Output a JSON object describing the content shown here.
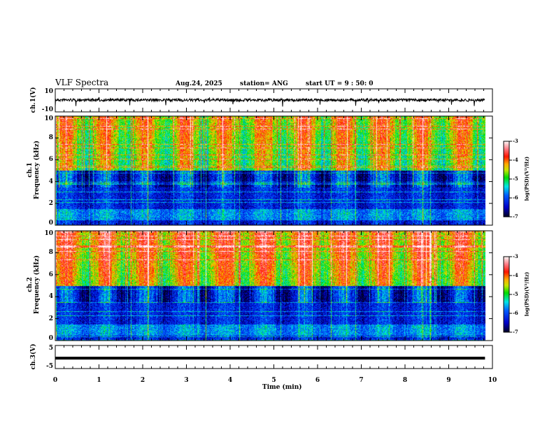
{
  "header": {
    "title": "VLF Spectra",
    "date": "Aug.24, 2025",
    "station": "station= ANG",
    "start": "start  UT =   9 : 50: 0"
  },
  "chart_data": [
    {
      "type": "line",
      "name": "ch1-waveform",
      "ylabel": "ch.1(V)",
      "ylim": [
        -10,
        10
      ],
      "ytick_labels": [
        "10",
        "-10"
      ],
      "baseline": 0,
      "x_end": 9.83
    },
    {
      "type": "heatmap",
      "name": "ch1-spectrogram",
      "ylabel": "ch.1\nFrequency (kHz)",
      "ylabel_top": "ch.1",
      "ylabel_bottom": "Frequency  (kHz)",
      "ylim": [
        0,
        10
      ],
      "ytick_labels": [
        "0",
        "2",
        "4",
        "6",
        "8",
        "10"
      ],
      "intensity": "lower",
      "colorbar": {
        "label": "log(PSD)(V²/Hz)",
        "range": [
          -7,
          -3
        ],
        "tick_labels": [
          "-3",
          "-4",
          "-5",
          "-6",
          "-7"
        ]
      }
    },
    {
      "type": "heatmap",
      "name": "ch2-spectrogram",
      "ylabel_top": "ch.2",
      "ylabel_bottom": "Frequency  (kHz)",
      "ylim": [
        0,
        10
      ],
      "ytick_labels": [
        "0",
        "2",
        "4",
        "6",
        "8",
        "10"
      ],
      "intensity": "higher",
      "colorbar": {
        "label": "log(PSD)(V²/Hz)",
        "range": [
          -7,
          -3
        ],
        "tick_labels": [
          "-3",
          "-4",
          "-5",
          "-6",
          "-7"
        ]
      }
    },
    {
      "type": "line",
      "name": "ch3-waveform",
      "ylabel": "ch.3(V)",
      "ylim": [
        -5,
        5
      ],
      "ytick_labels": [
        "5",
        "-5"
      ],
      "values_constant": -0.5,
      "x_end": 9.83
    }
  ],
  "xaxis": {
    "label": "Time  (min)",
    "range": [
      0,
      10
    ],
    "tick_labels": [
      "0",
      "1",
      "2",
      "3",
      "4",
      "5",
      "6",
      "7",
      "8",
      "9",
      "10"
    ]
  }
}
